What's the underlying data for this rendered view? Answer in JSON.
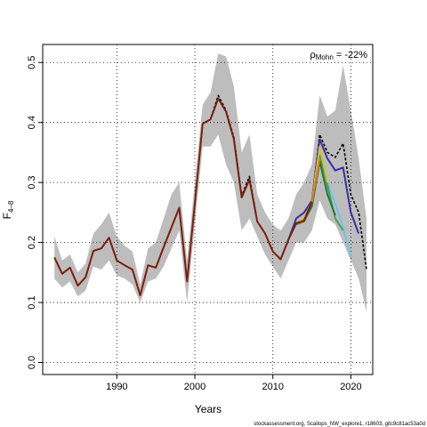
{
  "chart_data": {
    "type": "line",
    "xlabel": "Years",
    "ylabel_main": "F",
    "ylabel_sub": "4–8",
    "xlim": [
      1980.5,
      2022.8
    ],
    "ylim": [
      -0.02,
      0.53
    ],
    "x_ticks": [
      1990,
      2000,
      2010,
      2020
    ],
    "y_ticks": [
      0.0,
      0.1,
      0.2,
      0.3,
      0.4,
      0.5
    ],
    "y_tick_labels": [
      "0.0",
      "0.1",
      "0.2",
      "0.3",
      "0.4",
      "0.5"
    ],
    "grid": true,
    "annotation": {
      "rho_symbol": "ρ",
      "rho_sub": "Mohn",
      "value_text": " = -22%"
    },
    "footer": "stockassessment.org, Scallops_NW_explore1, r18603, gitc9c81ac53a0d",
    "band": {
      "x": [
        1982,
        1983,
        1984,
        1985,
        1986,
        1987,
        1988,
        1989,
        1990,
        1991,
        1992,
        1993,
        1994,
        1995,
        1996,
        1997,
        1998,
        1999,
        2000,
        2001,
        2002,
        2003,
        2004,
        2005,
        2006,
        2007,
        2008,
        2009,
        2010,
        2011,
        2012,
        2013,
        2014,
        2015,
        2016,
        2017,
        2018,
        2019,
        2020,
        2021,
        2022
      ],
      "lower": [
        0.14,
        0.125,
        0.135,
        0.11,
        0.12,
        0.16,
        0.155,
        0.17,
        0.145,
        0.14,
        0.13,
        0.1,
        0.135,
        0.14,
        0.16,
        0.19,
        0.22,
        0.1,
        0.23,
        0.36,
        0.36,
        0.38,
        0.33,
        0.3,
        0.22,
        0.24,
        0.21,
        0.18,
        0.16,
        0.14,
        0.17,
        0.2,
        0.2,
        0.22,
        0.27,
        0.24,
        0.23,
        0.2,
        0.17,
        0.14,
        0.085
      ],
      "upper": [
        0.21,
        0.17,
        0.18,
        0.15,
        0.165,
        0.215,
        0.23,
        0.25,
        0.21,
        0.195,
        0.185,
        0.13,
        0.19,
        0.2,
        0.24,
        0.28,
        0.3,
        0.17,
        0.3,
        0.43,
        0.45,
        0.515,
        0.51,
        0.46,
        0.35,
        0.38,
        0.28,
        0.25,
        0.23,
        0.22,
        0.24,
        0.28,
        0.3,
        0.33,
        0.445,
        0.41,
        0.42,
        0.495,
        0.42,
        0.34,
        0.24
      ]
    },
    "series": [
      {
        "color": "#000000",
        "dash": true,
        "x": [
          1982,
          1983,
          1984,
          1985,
          1986,
          1987,
          1988,
          1989,
          1990,
          1991,
          1992,
          1993,
          1994,
          1995,
          1996,
          1997,
          1998,
          1999,
          2000,
          2001,
          2002,
          2003,
          2004,
          2005,
          2006,
          2007,
          2008,
          2009,
          2010,
          2011,
          2012,
          2013,
          2014,
          2015,
          2016,
          2017,
          2018,
          2019,
          2020,
          2021,
          2022
        ],
        "y": [
          0.175,
          0.148,
          0.158,
          0.128,
          0.142,
          0.186,
          0.19,
          0.208,
          0.17,
          0.162,
          0.155,
          0.112,
          0.162,
          0.158,
          0.192,
          0.225,
          0.258,
          0.135,
          0.265,
          0.398,
          0.405,
          0.445,
          0.42,
          0.375,
          0.278,
          0.31,
          0.235,
          0.215,
          0.185,
          0.172,
          0.205,
          0.232,
          0.24,
          0.27,
          0.38,
          0.35,
          0.342,
          0.365,
          0.28,
          0.25,
          0.155
        ]
      },
      {
        "color": "#3b2fa0",
        "dash": false,
        "x": [
          2012,
          2013,
          2014,
          2015,
          2016,
          2017,
          2018,
          2019,
          2020,
          2021
        ],
        "y": [
          0.205,
          0.24,
          0.25,
          0.27,
          0.372,
          0.34,
          0.32,
          0.325,
          0.25,
          0.215
        ]
      },
      {
        "color": "#6ec6e6",
        "dash": false,
        "x": [
          2013,
          2014,
          2015,
          2016,
          2017,
          2018,
          2019,
          2020
        ],
        "y": [
          0.232,
          0.238,
          0.265,
          0.355,
          0.3,
          0.265,
          0.225,
          0.175
        ]
      },
      {
        "color": "#4a9e5a",
        "dash": false,
        "x": [
          2013,
          2014,
          2015,
          2016,
          2017,
          2018,
          2019
        ],
        "y": [
          0.23,
          0.235,
          0.262,
          0.345,
          0.295,
          0.24,
          0.22
        ]
      },
      {
        "color": "#1f7a3a",
        "dash": false,
        "x": [
          2013,
          2014,
          2015,
          2016,
          2017,
          2018
        ],
        "y": [
          0.232,
          0.236,
          0.26,
          0.335,
          0.28,
          0.245
        ]
      },
      {
        "color": "#d4c234",
        "dash": false,
        "x": [
          2013,
          2014,
          2015,
          2016,
          2017
        ],
        "y": [
          0.233,
          0.24,
          0.268,
          0.36,
          0.3
        ]
      },
      {
        "color": "#e07b22",
        "dash": false,
        "x": [
          2013,
          2014,
          2015,
          2016
        ],
        "y": [
          0.232,
          0.238,
          0.268,
          0.34
        ]
      },
      {
        "color": "#7a1f0c",
        "dash": false,
        "x": [
          1982,
          1983,
          1984,
          1985,
          1986,
          1987,
          1988,
          1989,
          1990,
          1991,
          1992,
          1993,
          1994,
          1995,
          1996,
          1997,
          1998,
          1999,
          2000,
          2001,
          2002,
          2003,
          2004,
          2005,
          2006,
          2007,
          2008,
          2009,
          2010,
          2011,
          2012,
          2013,
          2014,
          2015
        ],
        "y": [
          0.175,
          0.148,
          0.158,
          0.128,
          0.142,
          0.186,
          0.19,
          0.208,
          0.17,
          0.162,
          0.155,
          0.112,
          0.162,
          0.158,
          0.192,
          0.225,
          0.258,
          0.135,
          0.265,
          0.398,
          0.405,
          0.44,
          0.418,
          0.372,
          0.275,
          0.305,
          0.235,
          0.215,
          0.185,
          0.172,
          0.205,
          0.232,
          0.236,
          0.268
        ]
      }
    ]
  }
}
